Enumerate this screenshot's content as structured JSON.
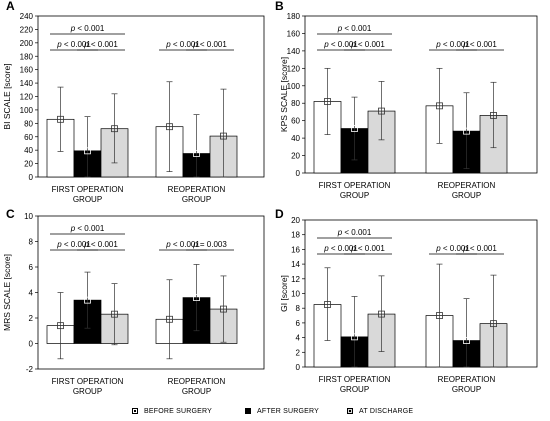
{
  "chart_data": [
    {
      "type": "bar",
      "panel_label": "A",
      "ylabel": "BI SCALE [score]",
      "ylim": [
        0,
        240
      ],
      "yticks": [
        0,
        20,
        40,
        60,
        80,
        100,
        120,
        140,
        160,
        180,
        200,
        220,
        240
      ],
      "categories": [
        "FIRST OPERATION GROUP",
        "REOPERATION GROUP"
      ],
      "series": [
        {
          "name": "BEFORE SURGERY",
          "values": [
            86,
            75
          ],
          "error_low": [
            38,
            8
          ],
          "error_high": [
            134,
            142
          ]
        },
        {
          "name": "AFTER SURGERY",
          "values": [
            39,
            35
          ],
          "error_low": [
            0,
            0
          ],
          "error_high": [
            90,
            93
          ]
        },
        {
          "name": "AT DISCHARGE",
          "values": [
            72,
            61
          ],
          "error_low": [
            21,
            0
          ],
          "error_high": [
            124,
            131
          ]
        }
      ],
      "annotations": [
        {
          "group": 0,
          "from": 0,
          "to": 2,
          "level": 2,
          "text": "p < 0.001"
        },
        {
          "group": 0,
          "from": 0,
          "to": 1,
          "level": 1,
          "text": "p < 0.001"
        },
        {
          "group": 0,
          "from": 1,
          "to": 2,
          "level": 1,
          "text": "p < 0.001"
        },
        {
          "group": 1,
          "from": 0,
          "to": 1,
          "level": 1,
          "text": "p < 0.001"
        },
        {
          "group": 1,
          "from": 1,
          "to": 2,
          "level": 1,
          "text": "p < 0.001"
        }
      ]
    },
    {
      "type": "bar",
      "panel_label": "B",
      "ylabel": "KPS SCALE [score]",
      "ylim": [
        0,
        180
      ],
      "yticks": [
        0,
        20,
        40,
        60,
        80,
        100,
        120,
        140,
        160,
        180
      ],
      "categories": [
        "FIRST OPERATION GROUP",
        "REOPERATION GROUP"
      ],
      "series": [
        {
          "name": "BEFORE SURGERY",
          "values": [
            82,
            77
          ],
          "error_low": [
            44,
            34
          ],
          "error_high": [
            120,
            120
          ]
        },
        {
          "name": "AFTER SURGERY",
          "values": [
            51,
            48
          ],
          "error_low": [
            15,
            5
          ],
          "error_high": [
            87,
            92
          ]
        },
        {
          "name": "AT DISCHARGE",
          "values": [
            71,
            66
          ],
          "error_low": [
            38,
            29
          ],
          "error_high": [
            105,
            104
          ]
        }
      ],
      "annotations": [
        {
          "group": 0,
          "from": 0,
          "to": 2,
          "level": 2,
          "text": "p < 0.001"
        },
        {
          "group": 0,
          "from": 0,
          "to": 1,
          "level": 1,
          "text": "p < 0.001"
        },
        {
          "group": 0,
          "from": 1,
          "to": 2,
          "level": 1,
          "text": "p < 0.001"
        },
        {
          "group": 1,
          "from": 0,
          "to": 1,
          "level": 1,
          "text": "p < 0.001"
        },
        {
          "group": 1,
          "from": 1,
          "to": 2,
          "level": 1,
          "text": "p < 0.001"
        }
      ]
    },
    {
      "type": "bar",
      "panel_label": "C",
      "ylabel": "MRS SCALE [score]",
      "ylim": [
        -2,
        10
      ],
      "yticks": [
        -2,
        0,
        2,
        4,
        6,
        8,
        10
      ],
      "categories": [
        "FIRST OPERATION GROUP",
        "REOPERATION GROUP"
      ],
      "series": [
        {
          "name": "BEFORE SURGERY",
          "values": [
            1.4,
            1.9
          ],
          "error_low": [
            -1.2,
            -1.2
          ],
          "error_high": [
            4.0,
            5.0
          ]
        },
        {
          "name": "AFTER SURGERY",
          "values": [
            3.4,
            3.6
          ],
          "error_low": [
            1.2,
            1.0
          ],
          "error_high": [
            5.6,
            6.2
          ]
        },
        {
          "name": "AT DISCHARGE",
          "values": [
            2.3,
            2.7
          ],
          "error_low": [
            -0.1,
            0.1
          ],
          "error_high": [
            4.7,
            5.3
          ]
        }
      ],
      "annotations": [
        {
          "group": 0,
          "from": 0,
          "to": 2,
          "level": 2,
          "text": "p < 0.001"
        },
        {
          "group": 0,
          "from": 0,
          "to": 1,
          "level": 1,
          "text": "p < 0.001"
        },
        {
          "group": 0,
          "from": 1,
          "to": 2,
          "level": 1,
          "text": "p < 0.001"
        },
        {
          "group": 1,
          "from": 0,
          "to": 1,
          "level": 1,
          "text": "p < 0.001"
        },
        {
          "group": 1,
          "from": 1,
          "to": 2,
          "level": 1,
          "text": "p = 0.003"
        }
      ]
    },
    {
      "type": "bar",
      "panel_label": "D",
      "ylabel": "GI [score]",
      "ylim": [
        0,
        20
      ],
      "yticks": [
        0,
        2,
        4,
        6,
        8,
        10,
        12,
        14,
        16,
        18,
        20
      ],
      "categories": [
        "FIRST OPERATION GROUP",
        "REOPERATION GROUP"
      ],
      "series": [
        {
          "name": "BEFORE SURGERY",
          "values": [
            8.5,
            7.0
          ],
          "error_low": [
            3.6,
            0.0
          ],
          "error_high": [
            13.5,
            14.0
          ]
        },
        {
          "name": "AFTER SURGERY",
          "values": [
            4.1,
            3.6
          ],
          "error_low": [
            0.0,
            0.0
          ],
          "error_high": [
            9.6,
            9.3
          ]
        },
        {
          "name": "AT DISCHARGE",
          "values": [
            7.2,
            5.9
          ],
          "error_low": [
            2.1,
            -0.5
          ],
          "error_high": [
            12.4,
            12.5
          ]
        }
      ],
      "annotations": [
        {
          "group": 0,
          "from": 0,
          "to": 2,
          "level": 2,
          "text": "p < 0.001"
        },
        {
          "group": 0,
          "from": 0,
          "to": 1,
          "level": 1,
          "text": "p < 0.001"
        },
        {
          "group": 0,
          "from": 1,
          "to": 2,
          "level": 1,
          "text": "p < 0.001"
        },
        {
          "group": 1,
          "from": 0,
          "to": 1,
          "level": 1,
          "text": "p < 0.001"
        },
        {
          "group": 1,
          "from": 1,
          "to": 2,
          "level": 1,
          "text": "p < 0.001"
        }
      ]
    }
  ],
  "series_colors": {
    "BEFORE SURGERY": "#ffffff",
    "AFTER SURGERY": "#000000",
    "AT DISCHARGE": "#d9d9d9"
  },
  "legend": {
    "items": [
      "BEFORE SURGERY",
      "AFTER SURGERY",
      "AT DISCHARGE"
    ],
    "placement": "bottom"
  }
}
